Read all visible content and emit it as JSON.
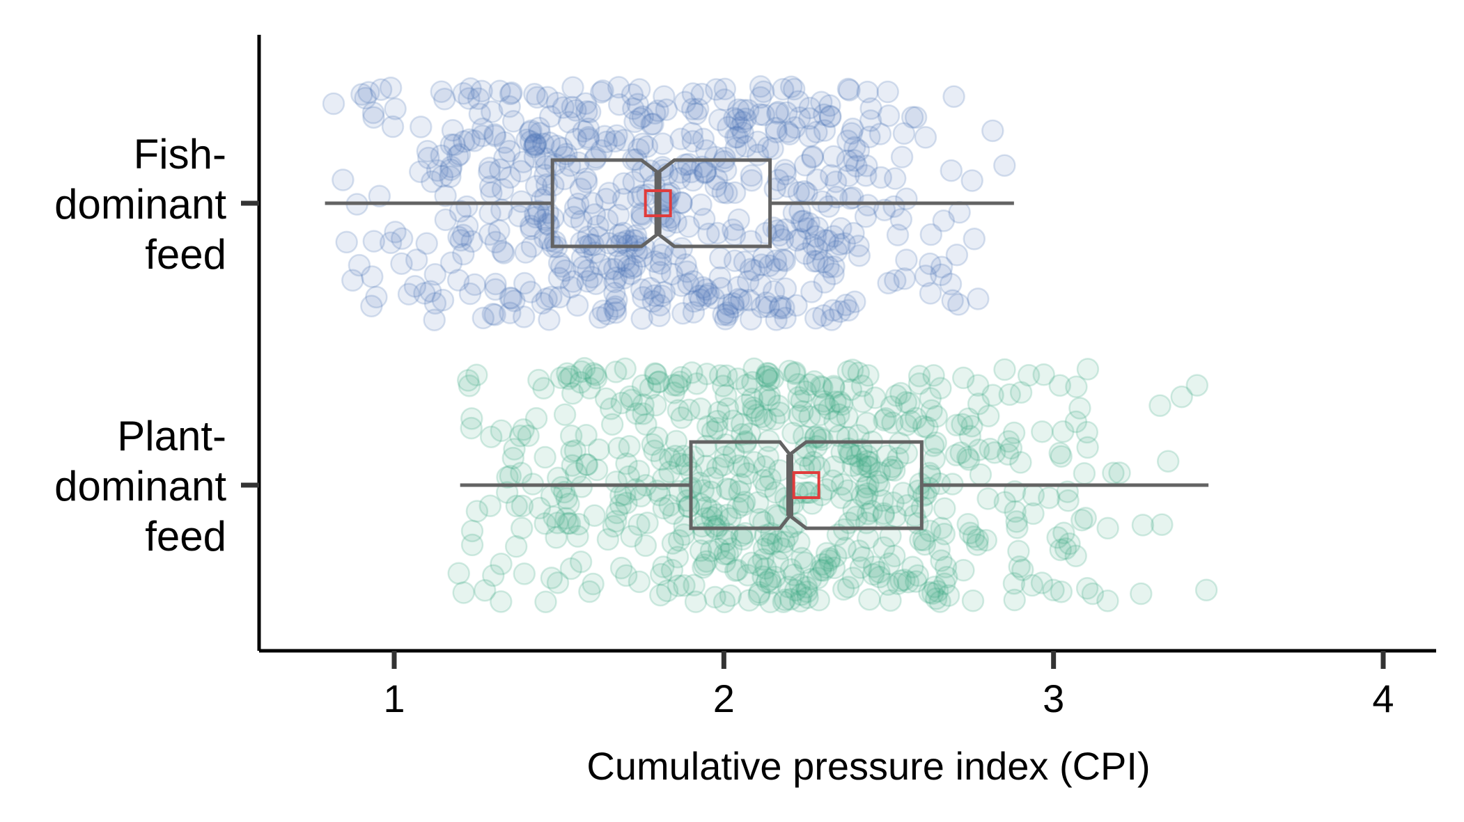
{
  "chart_data": {
    "type": "boxplot",
    "title": "",
    "xlabel": "Cumulative pressure index (CPI)",
    "ylabel": "",
    "xlim": [
      0.6,
      4.15
    ],
    "xticks": [
      "1",
      "2",
      "3",
      "4"
    ],
    "grid": false,
    "legend": "none",
    "series": [
      {
        "category": "Fish-dominant feed",
        "label_lines": [
          "Fish-",
          "dominant",
          "feed"
        ],
        "color": "#4f77b8",
        "whisker_low": 0.79,
        "q1": 1.48,
        "median": 1.8,
        "q3": 2.14,
        "whisker_high": 2.88,
        "notch_low": 1.75,
        "notch_high": 1.85,
        "mean": 1.8,
        "point_min": 0.79,
        "point_max": 2.88,
        "n_points": 600
      },
      {
        "category": "Plant-dominant feed",
        "label_lines": [
          "Plant-",
          "dominant",
          "feed"
        ],
        "color": "#3aa886",
        "whisker_low": 1.2,
        "q1": 1.9,
        "median": 2.2,
        "q3": 2.6,
        "whisker_high": 3.47,
        "notch_low": 2.17,
        "notch_high": 2.25,
        "mean": 2.25,
        "point_min": 1.18,
        "point_max": 3.47,
        "n_points": 620
      }
    ],
    "box_color": "#636363",
    "mean_marker_color": "#e03c3c"
  }
}
